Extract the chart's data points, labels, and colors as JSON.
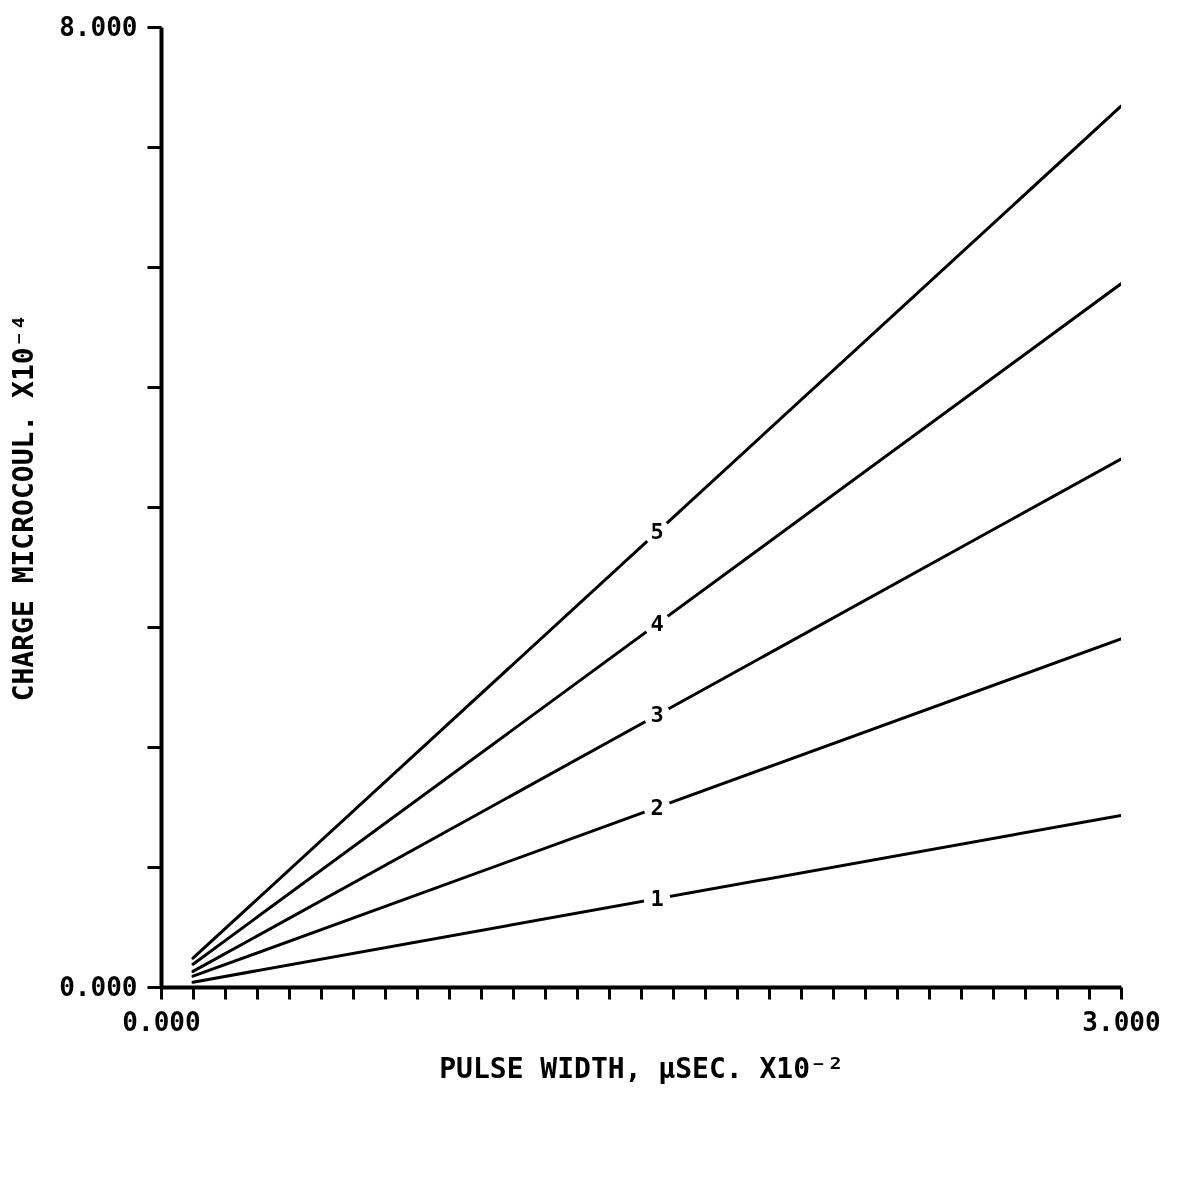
{
  "chart_data": {
    "type": "line",
    "xlabel": "PULSE WIDTH, µSEC. X10⁻²",
    "ylabel": "CHARGE  MICROCOUL. X10⁻⁴",
    "xlim": [
      0,
      3
    ],
    "ylim": [
      0,
      8
    ],
    "xticks": [
      {
        "value": 0,
        "label": "0.000"
      },
      {
        "value": 0.1,
        "label": null
      },
      {
        "value": 0.2,
        "label": null
      },
      {
        "value": 0.3,
        "label": null
      },
      {
        "value": 0.4,
        "label": null
      },
      {
        "value": 0.5,
        "label": null
      },
      {
        "value": 0.6,
        "label": null
      },
      {
        "value": 0.7,
        "label": null
      },
      {
        "value": 0.8,
        "label": null
      },
      {
        "value": 0.9,
        "label": null
      },
      {
        "value": 1,
        "label": null
      },
      {
        "value": 1.1,
        "label": null
      },
      {
        "value": 1.2,
        "label": null
      },
      {
        "value": 1.3,
        "label": null
      },
      {
        "value": 1.4,
        "label": null
      },
      {
        "value": 1.5,
        "label": null
      },
      {
        "value": 1.6,
        "label": null
      },
      {
        "value": 1.7,
        "label": null
      },
      {
        "value": 1.8,
        "label": null
      },
      {
        "value": 1.9,
        "label": null
      },
      {
        "value": 2,
        "label": null
      },
      {
        "value": 2.1,
        "label": null
      },
      {
        "value": 2.2,
        "label": null
      },
      {
        "value": 2.3,
        "label": null
      },
      {
        "value": 2.4,
        "label": null
      },
      {
        "value": 2.5,
        "label": null
      },
      {
        "value": 2.6,
        "label": null
      },
      {
        "value": 2.7,
        "label": null
      },
      {
        "value": 2.8,
        "label": null
      },
      {
        "value": 2.9,
        "label": null
      },
      {
        "value": 3,
        "label": "3.000"
      }
    ],
    "yticks": [
      {
        "value": 0,
        "label": "0.000"
      },
      {
        "value": 1,
        "label": null
      },
      {
        "value": 2,
        "label": null
      },
      {
        "value": 3,
        "label": null
      },
      {
        "value": 4,
        "label": null
      },
      {
        "value": 5,
        "label": null
      },
      {
        "value": 6,
        "label": null
      },
      {
        "value": 7,
        "label": null
      },
      {
        "value": 8,
        "label": "8.000"
      }
    ],
    "x": [
      0.1,
      3
    ],
    "series": [
      {
        "name": "1",
        "color": "#000000",
        "values": [
          0.04,
          1.43
        ]
      },
      {
        "name": "2",
        "color": "#000000",
        "values": [
          0.09,
          2.9
        ]
      },
      {
        "name": "3",
        "color": "#000000",
        "values": [
          0.13,
          4.4
        ]
      },
      {
        "name": "4",
        "color": "#000000",
        "values": [
          0.19,
          5.86
        ]
      },
      {
        "name": "5",
        "color": "#000000",
        "values": [
          0.24,
          7.34
        ]
      }
    ],
    "grid": false,
    "legend": false
  }
}
